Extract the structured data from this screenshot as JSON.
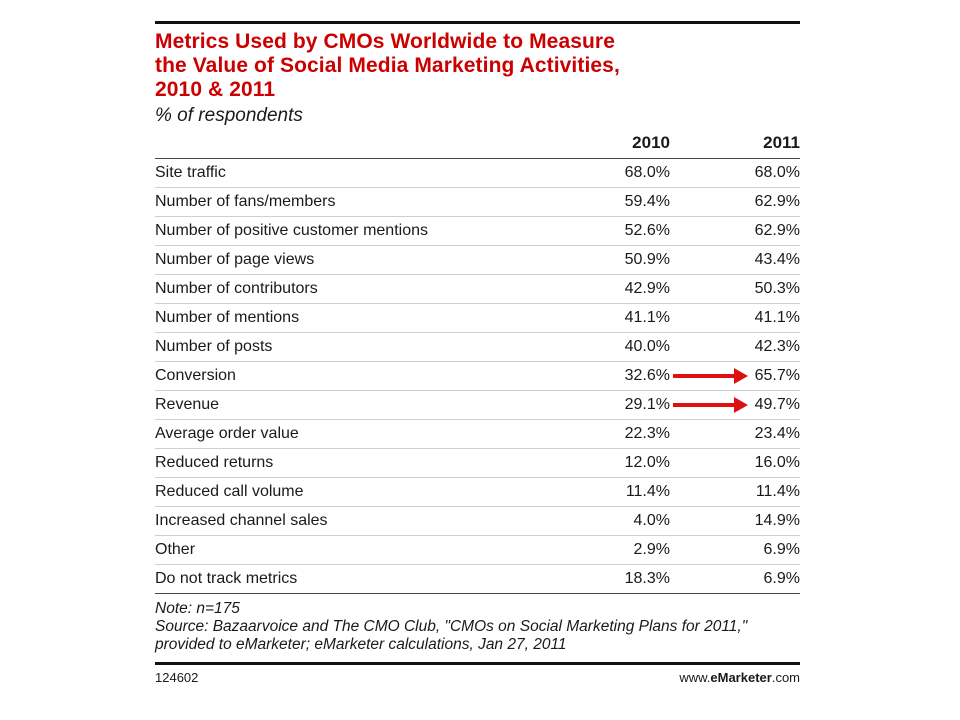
{
  "title": "Metrics Used by CMOs Worldwide to Measure\nthe Value of Social Media Marketing Activities,\n2010 & 2011",
  "subtitle": "% of respondents",
  "columns": [
    "2010",
    "2011"
  ],
  "chart_data": {
    "type": "table",
    "title": "Metrics Used by CMOs Worldwide to Measure the Value of Social Media Marketing Activities, 2010 & 2011",
    "subtitle": "% of respondents",
    "columns": [
      "2010",
      "2011"
    ],
    "rows": [
      {
        "label": "Site traffic",
        "v2010": "68.0%",
        "v2011": "68.0%"
      },
      {
        "label": "Number of fans/members",
        "v2010": "59.4%",
        "v2011": "62.9%"
      },
      {
        "label": "Number of positive customer mentions",
        "v2010": "52.6%",
        "v2011": "62.9%"
      },
      {
        "label": "Number of page views",
        "v2010": "50.9%",
        "v2011": "43.4%"
      },
      {
        "label": "Number of contributors",
        "v2010": "42.9%",
        "v2011": "50.3%"
      },
      {
        "label": "Number of mentions",
        "v2010": "41.1%",
        "v2011": "41.1%"
      },
      {
        "label": "Number of posts",
        "v2010": "40.0%",
        "v2011": "42.3%"
      },
      {
        "label": "Conversion",
        "v2010": "32.6%",
        "v2011": "65.7%",
        "highlight": true
      },
      {
        "label": "Revenue",
        "v2010": "29.1%",
        "v2011": "49.7%",
        "highlight": true
      },
      {
        "label": "Average order value",
        "v2010": "22.3%",
        "v2011": "23.4%"
      },
      {
        "label": "Reduced returns",
        "v2010": "12.0%",
        "v2011": "16.0%"
      },
      {
        "label": "Reduced call volume",
        "v2010": "11.4%",
        "v2011": "11.4%"
      },
      {
        "label": "Increased channel sales",
        "v2010": "4.0%",
        "v2011": "14.9%"
      },
      {
        "label": "Other",
        "v2010": "2.9%",
        "v2011": "6.9%"
      },
      {
        "label": "Do not track metrics",
        "v2010": "18.3%",
        "v2011": "6.9%"
      }
    ]
  },
  "note": "Note: n=175",
  "source": "Source: Bazaarvoice and The CMO Club, \"CMOs on Social Marketing Plans for 2011,\" provided to eMarketer; eMarketer calculations, Jan 27, 2011",
  "footer": {
    "id": "124602",
    "brand_prefix": "www.",
    "brand_bold": "eMarketer",
    "brand_suffix": ".com"
  },
  "colors": {
    "title": "#cc0000",
    "arrow": "#dd1111"
  }
}
